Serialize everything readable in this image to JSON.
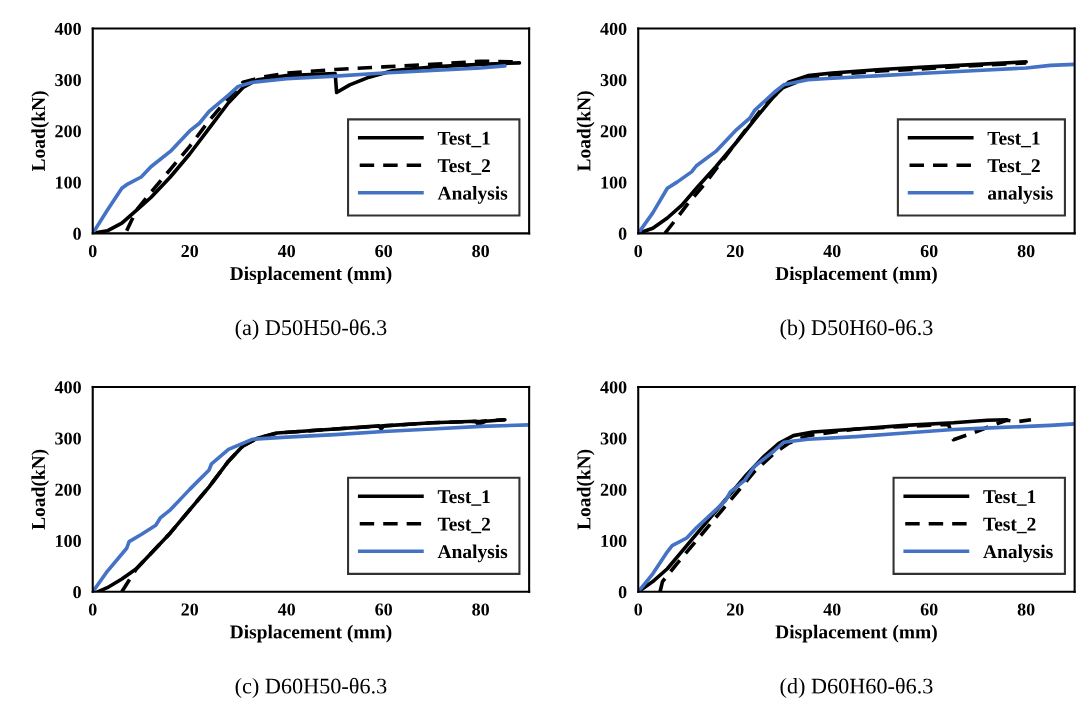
{
  "chart_data": [
    {
      "type": "line",
      "xlabel": "Displacement (mm)",
      "ylabel": "Load(kN)",
      "xlim": [
        0,
        90
      ],
      "ylim": [
        0,
        400
      ],
      "xticks": [
        0,
        20,
        40,
        60,
        80
      ],
      "yticks": [
        0,
        100,
        200,
        300,
        400
      ],
      "grid": false,
      "legend": "lower right",
      "marker": "none",
      "annotations": [
        "(a) D50H50-θ6.3"
      ],
      "series": [
        {
          "name": "Test_1",
          "color": "#000000",
          "line_style": "solid",
          "x": [
            0,
            3,
            6,
            9,
            12,
            16,
            20,
            24,
            28,
            31,
            34,
            40,
            50,
            50.3,
            53,
            57,
            62,
            70,
            80,
            88
          ],
          "values": [
            0,
            5,
            20,
            45,
            70,
            110,
            155,
            205,
            255,
            285,
            300,
            308,
            312,
            275,
            290,
            305,
            318,
            325,
            330,
            333
          ]
        },
        {
          "name": "Test_2",
          "color": "#000000",
          "line_style": "dashed",
          "x": [
            7,
            8,
            9,
            12,
            16,
            20,
            24,
            28,
            31,
            35,
            40,
            50,
            60,
            70,
            80,
            87
          ],
          "values": [
            5,
            25,
            45,
            80,
            125,
            170,
            220,
            265,
            295,
            305,
            313,
            320,
            325,
            330,
            336,
            335
          ]
        },
        {
          "name": "Analysis",
          "color": "#4472c4",
          "line_style": "solid",
          "x": [
            0,
            3,
            6,
            7,
            10,
            12,
            16,
            18,
            20,
            22,
            24,
            28,
            30,
            33,
            40,
            50,
            60,
            70,
            80,
            85
          ],
          "values": [
            0,
            45,
            88,
            95,
            110,
            130,
            160,
            180,
            200,
            215,
            238,
            270,
            287,
            295,
            302,
            307,
            313,
            318,
            323,
            327
          ]
        }
      ]
    },
    {
      "type": "line",
      "xlabel": "Displacement (mm)",
      "ylabel": "Load(kN)",
      "xlim": [
        0,
        90
      ],
      "ylim": [
        0,
        400
      ],
      "xticks": [
        0,
        20,
        40,
        60,
        80
      ],
      "yticks": [
        0,
        100,
        200,
        300,
        400
      ],
      "grid": false,
      "legend": "lower right",
      "marker": "none",
      "annotations": [
        "(b) D50H60-θ6.3"
      ],
      "series": [
        {
          "name": "Test_1",
          "color": "#000000",
          "line_style": "solid",
          "x": [
            0,
            3,
            6,
            9,
            12,
            16,
            20,
            24,
            28,
            31,
            35,
            40,
            50,
            60,
            70,
            80
          ],
          "values": [
            0,
            10,
            30,
            55,
            88,
            130,
            175,
            222,
            268,
            295,
            308,
            313,
            320,
            325,
            330,
            335
          ]
        },
        {
          "name": "Test_2",
          "color": "#000000",
          "line_style": "dashed",
          "x": [
            5.5,
            8,
            10,
            14,
            18,
            22,
            26,
            30,
            34,
            40,
            50,
            60,
            70,
            80
          ],
          "values": [
            0,
            30,
            55,
            100,
            150,
            200,
            250,
            285,
            300,
            310,
            317,
            322,
            328,
            333
          ]
        },
        {
          "name": "analysis",
          "color": "#4472c4",
          "line_style": "solid",
          "x": [
            0,
            3,
            6,
            8,
            11,
            12,
            16,
            20,
            23,
            24,
            28,
            30,
            35,
            40,
            50,
            60,
            70,
            80,
            85,
            90
          ],
          "values": [
            0,
            40,
            88,
            100,
            120,
            132,
            160,
            200,
            225,
            240,
            275,
            290,
            300,
            303,
            308,
            313,
            318,
            323,
            328,
            330
          ]
        }
      ]
    },
    {
      "type": "line",
      "xlabel": "Displacement (mm)",
      "ylabel": "Load(kN)",
      "xlim": [
        0,
        90
      ],
      "ylim": [
        0,
        400
      ],
      "xticks": [
        0,
        20,
        40,
        60,
        80
      ],
      "yticks": [
        0,
        100,
        200,
        300,
        400
      ],
      "grid": false,
      "legend": "lower right",
      "marker": "none",
      "annotations": [
        "(c) D60H50-θ6.3"
      ],
      "series": [
        {
          "name": "Test_1",
          "color": "#000000",
          "line_style": "solid",
          "x": [
            1,
            3,
            6,
            9,
            12,
            16,
            20,
            24,
            28,
            31,
            34,
            38,
            50,
            59,
            59.5,
            60,
            70,
            79,
            79.5,
            81,
            85
          ],
          "values": [
            0,
            8,
            25,
            45,
            75,
            115,
            160,
            205,
            255,
            285,
            300,
            310,
            318,
            324,
            318,
            324,
            330,
            333,
            327,
            333,
            336
          ]
        },
        {
          "name": "Test_2",
          "color": "#000000",
          "line_style": "dashed",
          "x": [
            6,
            8,
            9,
            12,
            16,
            20,
            24,
            28,
            31,
            34,
            38,
            50,
            60,
            70,
            80,
            85
          ],
          "values": [
            0,
            30,
            45,
            75,
            115,
            160,
            205,
            255,
            285,
            300,
            310,
            318,
            324,
            330,
            333,
            336
          ]
        },
        {
          "name": "Analysis",
          "color": "#4472c4",
          "line_style": "solid",
          "x": [
            0,
            3,
            7,
            7.5,
            10,
            13,
            14,
            16,
            18,
            20,
            24,
            24.5,
            28,
            33,
            40,
            50,
            60,
            70,
            80,
            90
          ],
          "values": [
            0,
            40,
            85,
            98,
            112,
            130,
            145,
            160,
            180,
            200,
            238,
            250,
            278,
            298,
            302,
            307,
            313,
            318,
            323,
            326
          ]
        }
      ]
    },
    {
      "type": "line",
      "xlabel": "Displacement (mm)",
      "ylabel": "Load(kN)",
      "xlim": [
        0,
        90
      ],
      "ylim": [
        0,
        400
      ],
      "xticks": [
        0,
        20,
        40,
        60,
        80
      ],
      "yticks": [
        0,
        100,
        200,
        300,
        400
      ],
      "grid": false,
      "legend": "lower right",
      "marker": "none",
      "annotations": [
        "(d) D60H60-θ6.3"
      ],
      "series": [
        {
          "name": "Test_1",
          "color": "#000000",
          "line_style": "solid",
          "x": [
            0,
            3,
            6,
            10,
            14,
            18,
            22,
            26,
            29,
            32,
            36,
            45,
            55,
            65,
            72,
            76
          ],
          "values": [
            0,
            20,
            45,
            90,
            135,
            180,
            225,
            265,
            290,
            305,
            312,
            318,
            325,
            330,
            335,
            336
          ]
        },
        {
          "name": "Test_2",
          "color": "#000000",
          "line_style": "dashed",
          "x": [
            4.5,
            5,
            8,
            12,
            16,
            20,
            24,
            28,
            31,
            35,
            45,
            55,
            64,
            65,
            69,
            73,
            76,
            78,
            81
          ],
          "values": [
            0,
            20,
            55,
            100,
            145,
            190,
            235,
            270,
            290,
            305,
            318,
            323,
            327,
            297,
            310,
            325,
            335,
            332,
            336
          ]
        },
        {
          "name": "Analysis",
          "color": "#4472c4",
          "line_style": "solid",
          "x": [
            0,
            3,
            6,
            7,
            10,
            12,
            16,
            18,
            19,
            22,
            24,
            28,
            30,
            35,
            45,
            55,
            65,
            75,
            85,
            90
          ],
          "values": [
            0,
            35,
            78,
            90,
            105,
            125,
            160,
            178,
            195,
            218,
            245,
            275,
            292,
            298,
            303,
            310,
            317,
            321,
            325,
            328
          ]
        }
      ]
    }
  ]
}
